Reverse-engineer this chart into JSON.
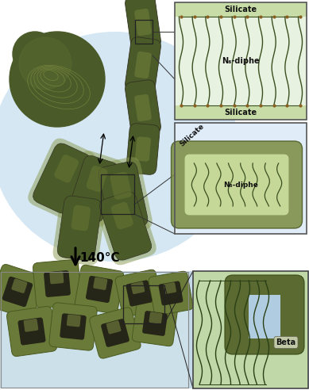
{
  "dark_green": "#4a5c2a",
  "med_green": "#6b7c3a",
  "light_green": "#8fa060",
  "pale_green": "#c8d8a0",
  "shell_green": "#7a8a45",
  "zeolite_outer": "#6a7a40",
  "zeolite_inner": "#2a2a1a",
  "temp_text": "140°C",
  "silicate_text": "Silicate",
  "ndiphe_text": "N₆-diphe",
  "beta_text": "Beta",
  "inset1_bg": "#e8f2e0",
  "inset1_strip": "#c8dca8",
  "inset2_bg": "#e0ecf8",
  "bottom_bg": "#b8d4e8",
  "bottom_inset_bg": "#c0d8a8",
  "blue_bg": "#c8dff0",
  "white": "#ffffff"
}
